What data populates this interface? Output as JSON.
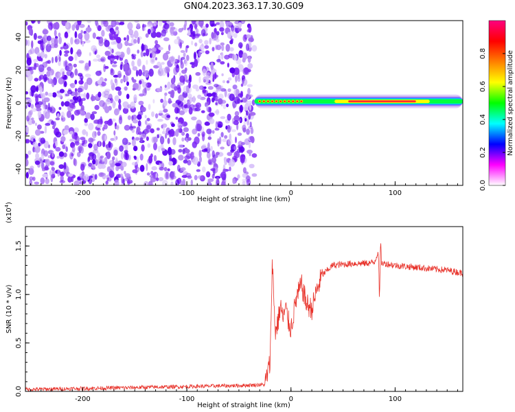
{
  "title": "GN04.2023.363.17.30.G09",
  "colors": {
    "snr_line": "#e8322a",
    "speckle_palette": [
      "#5b00f0",
      "#7a22f5",
      "#9a5cf0",
      "#b98ff5",
      "#d9c4fa"
    ],
    "colormap": [
      "#ffffff",
      "#ff00ff",
      "#0000ff",
      "#00ffff",
      "#00ff00",
      "#ffff00",
      "#ff8000",
      "#ff0000",
      "#ff0080"
    ]
  },
  "chart_data": [
    {
      "type": "heatmap",
      "title": "GN04.2023.363.17.30.G09",
      "xlabel": "Height of straight line (km)",
      "ylabel": "Frequency (Hz)",
      "xlim": [
        -255,
        165
      ],
      "ylim": [
        -50,
        50
      ],
      "xticks": [
        -200,
        -100,
        0,
        100
      ],
      "yticks": [
        -40,
        -20,
        0,
        20,
        40
      ],
      "colorbar": {
        "label": "Normalized spectral amplitude",
        "range": [
          0,
          1
        ],
        "ticks": [
          "0.0",
          "0.2",
          "0.4",
          "0.6",
          "0.8"
        ]
      },
      "noise_region_x": [
        -255,
        -35
      ],
      "signal_band": {
        "x_start": -35,
        "x_end": 165,
        "center_frequency_hz": 1,
        "peak_x_range": [
          55,
          120
        ]
      }
    },
    {
      "type": "line",
      "xlabel": "Height of straight line (km)",
      "ylabel": "SNR (10 * v/v)",
      "y_scale_label": "(x10",
      "y_scale_exponent": "4",
      "xlim": [
        -255,
        165
      ],
      "ylim": [
        0,
        1.7
      ],
      "xticks": [
        -200,
        -100,
        0,
        100
      ],
      "yticks": [
        "0.0",
        "0.5",
        "1.0",
        "1.5"
      ],
      "grid": false,
      "series": [
        {
          "x": [
            -255,
            -200,
            -150,
            -100,
            -50,
            -25,
            -20,
            -18,
            -15,
            -12,
            -10,
            -8,
            -5,
            -2,
            0,
            5,
            10,
            15,
            20,
            25,
            30,
            40,
            50,
            60,
            70,
            80,
            84,
            85,
            86,
            87,
            90,
            100,
            110,
            120,
            130,
            140,
            150,
            160,
            165
          ],
          "y": [
            0.02,
            0.03,
            0.04,
            0.05,
            0.06,
            0.07,
            0.3,
            1.35,
            0.6,
            0.75,
            0.9,
            0.75,
            0.85,
            0.7,
            0.65,
            0.95,
            1.1,
            0.9,
            0.85,
            1.05,
            1.2,
            1.3,
            1.31,
            1.32,
            1.32,
            1.33,
            1.45,
            0.9,
            1.55,
            1.32,
            1.32,
            1.3,
            1.29,
            1.28,
            1.27,
            1.26,
            1.25,
            1.23,
            1.22
          ]
        }
      ]
    }
  ]
}
